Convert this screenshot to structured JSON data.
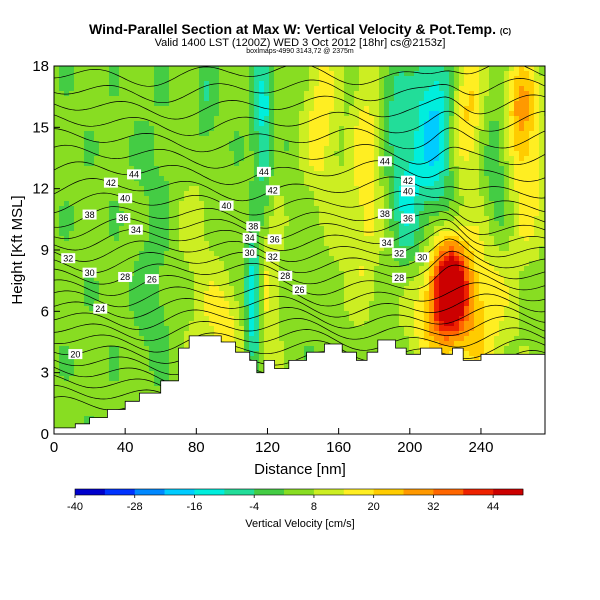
{
  "header": {
    "title": "Wind-Parallel Section at Max W: Vertical Velocity & Pot.Temp.",
    "title_mark": "(C)",
    "subtitle": "Valid 1400 LST (1200Z) WED 3 Oct 2012 [18hr] cs@2153z]",
    "credit": "boxlmaps-4990 3143,72 @ 2375m"
  },
  "chart_data": {
    "type": "heatmap",
    "title": "Wind-Parallel Section at Max W: Vertical Velocity & Pot.Temp.",
    "xlabel": "Distance [nm]",
    "ylabel": "Height [Kft MSL]",
    "xlim": [
      0,
      276
    ],
    "ylim": [
      0,
      18
    ],
    "x_ticks": [
      0,
      40,
      80,
      120,
      160,
      200,
      240
    ],
    "y_ticks": [
      0,
      3,
      6,
      9,
      12,
      15,
      18
    ],
    "colorbar": {
      "label": "Vertical Velocity [cm/s]",
      "ticks": [
        -40,
        -28,
        -16,
        -4,
        8,
        20,
        32,
        44
      ],
      "range": [
        -40,
        50
      ],
      "colors": [
        "#0000cc",
        "#0033ff",
        "#0088ff",
        "#00ccff",
        "#00eedd",
        "#22dd99",
        "#44cc44",
        "#88dd22",
        "#ccee22",
        "#ffee22",
        "#ffcc00",
        "#ff9900",
        "#ff6600",
        "#ee2200",
        "#cc0000"
      ]
    },
    "terrain": [
      [
        0,
        0.3
      ],
      [
        12,
        0.3
      ],
      [
        12,
        0.5
      ],
      [
        20,
        0.5
      ],
      [
        20,
        0.8
      ],
      [
        30,
        0.8
      ],
      [
        30,
        1.2
      ],
      [
        40,
        1.2
      ],
      [
        40,
        1.6
      ],
      [
        48,
        1.6
      ],
      [
        48,
        2.0
      ],
      [
        60,
        2.0
      ],
      [
        60,
        2.6
      ],
      [
        70,
        2.6
      ],
      [
        70,
        4.2
      ],
      [
        76,
        4.2
      ],
      [
        76,
        4.8
      ],
      [
        94,
        4.8
      ],
      [
        94,
        4.5
      ],
      [
        102,
        4.5
      ],
      [
        102,
        4.0
      ],
      [
        110,
        4.0
      ],
      [
        110,
        3.6
      ],
      [
        114,
        3.6
      ],
      [
        114,
        3.0
      ],
      [
        118,
        3.0
      ],
      [
        118,
        3.6
      ],
      [
        124,
        3.6
      ],
      [
        124,
        3.2
      ],
      [
        132,
        3.2
      ],
      [
        132,
        3.6
      ],
      [
        142,
        3.6
      ],
      [
        142,
        4.0
      ],
      [
        152,
        4.0
      ],
      [
        152,
        4.4
      ],
      [
        162,
        4.4
      ],
      [
        162,
        4.0
      ],
      [
        170,
        4.0
      ],
      [
        170,
        3.6
      ],
      [
        176,
        3.6
      ],
      [
        176,
        4.0
      ],
      [
        182,
        4.0
      ],
      [
        182,
        4.6
      ],
      [
        192,
        4.6
      ],
      [
        192,
        4.2
      ],
      [
        198,
        4.2
      ],
      [
        198,
        3.9
      ],
      [
        206,
        3.9
      ],
      [
        206,
        4.2
      ],
      [
        218,
        4.2
      ],
      [
        218,
        3.9
      ],
      [
        224,
        3.9
      ],
      [
        224,
        4.2
      ],
      [
        230,
        4.2
      ],
      [
        230,
        3.6
      ],
      [
        240,
        3.6
      ],
      [
        240,
        3.9
      ],
      [
        258,
        3.9
      ],
      [
        258,
        3.9
      ],
      [
        276,
        3.9
      ]
    ],
    "wv_features": [
      {
        "x": 222,
        "y": 7.2,
        "sx": 7,
        "sy": 1.6,
        "w": 50
      },
      {
        "x": 236,
        "y": 6.0,
        "sx": 14,
        "sy": 2.8,
        "w": 18
      },
      {
        "x": 210,
        "y": 5.5,
        "sx": 10,
        "sy": 1.5,
        "w": 12
      },
      {
        "x": 232,
        "y": 15.8,
        "sx": 7,
        "sy": 2.5,
        "w": 18
      },
      {
        "x": 262,
        "y": 16,
        "sx": 7,
        "sy": 2.0,
        "w": 22
      },
      {
        "x": 266,
        "y": 12,
        "sx": 8,
        "sy": 2.5,
        "w": 12
      },
      {
        "x": 150,
        "y": 15.5,
        "sx": 7,
        "sy": 3.0,
        "w": 14
      },
      {
        "x": 176,
        "y": 14,
        "sx": 6,
        "sy": 4.0,
        "w": 12
      },
      {
        "x": 120,
        "y": 9,
        "sx": 5,
        "sy": 5.0,
        "w": 12
      },
      {
        "x": 118,
        "y": 14.5,
        "sx": 4,
        "sy": 3.0,
        "w": -22
      },
      {
        "x": 112,
        "y": 6.5,
        "sx": 3,
        "sy": 2.0,
        "w": -26
      },
      {
        "x": 214,
        "y": 15,
        "sx": 8,
        "sy": 3.0,
        "w": -22
      },
      {
        "x": 198,
        "y": 12,
        "sx": 6,
        "sy": 2.5,
        "w": -14
      },
      {
        "x": 250,
        "y": 13.5,
        "sx": 6,
        "sy": 2.5,
        "w": -10
      },
      {
        "x": 190,
        "y": 16.5,
        "sx": 5,
        "sy": 2.0,
        "w": -8
      },
      {
        "x": 86,
        "y": 16,
        "sx": 4,
        "sy": 2.0,
        "w": -8
      },
      {
        "x": 58,
        "y": 12,
        "sx": 8,
        "sy": 3.0,
        "w": -4
      },
      {
        "x": 168,
        "y": 9,
        "sx": 10,
        "sy": 3.0,
        "w": 6
      },
      {
        "x": 80,
        "y": 9,
        "sx": 10,
        "sy": 4.0,
        "w": 6
      },
      {
        "x": 56,
        "y": 6,
        "sx": 6,
        "sy": 2.0,
        "w": -6
      },
      {
        "x": 96,
        "y": 5.5,
        "sx": 8,
        "sy": 1.5,
        "w": 12
      }
    ],
    "theta_contours": [
      {
        "base": 1.3,
        "labels": []
      },
      {
        "base": 1.85,
        "labels": []
      },
      {
        "base": 2.4,
        "labels": []
      },
      {
        "base": 2.95,
        "labels": []
      },
      {
        "base": 3.5,
        "labels": []
      },
      {
        "base": 4.05,
        "labels": [
          {
            "text": "20",
            "x": 12
          }
        ]
      },
      {
        "base": 4.6,
        "labels": []
      },
      {
        "base": 5.15,
        "labels": []
      },
      {
        "base": 5.7,
        "labels": []
      },
      {
        "base": 6.25,
        "labels": [
          {
            "text": "24",
            "x": 26
          }
        ]
      },
      {
        "base": 6.8,
        "labels": []
      },
      {
        "base": 7.35,
        "labels": [
          {
            "text": "26",
            "x": 55
          },
          {
            "text": "26",
            "x": 138
          }
        ]
      },
      {
        "base": 7.9,
        "labels": [
          {
            "text": "28",
            "x": 40
          },
          {
            "text": "28",
            "x": 130
          },
          {
            "text": "28",
            "x": 194
          }
        ]
      },
      {
        "base": 8.45,
        "labels": [
          {
            "text": "30",
            "x": 20
          },
          {
            "text": "30",
            "x": 110
          },
          {
            "text": "30",
            "x": 207
          }
        ]
      },
      {
        "base": 9.0,
        "labels": [
          {
            "text": "32",
            "x": 8
          },
          {
            "text": "32",
            "x": 123
          },
          {
            "text": "32",
            "x": 194
          }
        ]
      },
      {
        "base": 9.55,
        "labels": [
          {
            "text": "34",
            "x": 46
          },
          {
            "text": "34",
            "x": 110
          },
          {
            "text": "34",
            "x": 187
          }
        ]
      },
      {
        "base": 10.1,
        "labels": [
          {
            "text": "36",
            "x": 39
          },
          {
            "text": "36",
            "x": 124
          },
          {
            "text": "36",
            "x": 199
          }
        ]
      },
      {
        "base": 10.65,
        "labels": [
          {
            "text": "38",
            "x": 20
          },
          {
            "text": "38",
            "x": 112
          },
          {
            "text": "38",
            "x": 186
          }
        ]
      },
      {
        "base": 11.3,
        "labels": [
          {
            "text": "40",
            "x": 40
          },
          {
            "text": "40",
            "x": 97
          },
          {
            "text": "40",
            "x": 199
          }
        ]
      },
      {
        "base": 12.0,
        "labels": [
          {
            "text": "42",
            "x": 32
          },
          {
            "text": "42",
            "x": 123
          },
          {
            "text": "42",
            "x": 199
          }
        ]
      },
      {
        "base": 12.8,
        "labels": [
          {
            "text": "44",
            "x": 45
          },
          {
            "text": "44",
            "x": 118
          },
          {
            "text": "44",
            "x": 186
          }
        ]
      },
      {
        "base": 13.6,
        "labels": []
      },
      {
        "base": 14.4,
        "labels": []
      },
      {
        "base": 15.2,
        "labels": []
      },
      {
        "base": 16.0,
        "labels": []
      },
      {
        "base": 16.8,
        "labels": []
      },
      {
        "base": 17.6,
        "labels": []
      }
    ]
  }
}
